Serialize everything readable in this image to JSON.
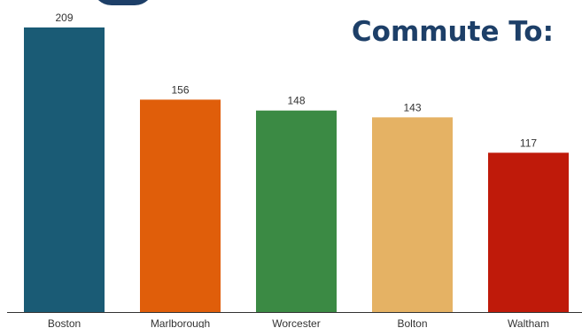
{
  "header": {
    "subtitle": "Commute To:"
  },
  "chart_data": {
    "type": "bar",
    "title": "",
    "xlabel": "",
    "ylabel": "",
    "ylim": [
      0,
      209
    ],
    "grid": false,
    "legend": "none",
    "categories": [
      "Boston",
      "Marlborough",
      "Worcester",
      "Bolton",
      "Waltham"
    ],
    "values": [
      209,
      156,
      148,
      143,
      117
    ],
    "colors": [
      "#1a5b75",
      "#e05e0a",
      "#3b8a44",
      "#e5b264",
      "#bf1a0a"
    ]
  }
}
